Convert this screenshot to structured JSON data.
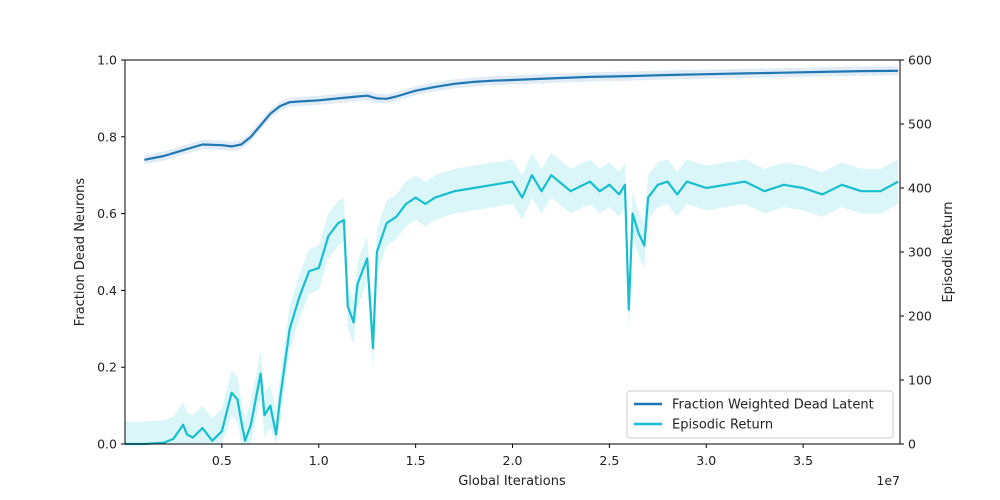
{
  "chart_data": {
    "type": "line",
    "title": "",
    "xlabel": "Global Iterations",
    "x_offset_label": "1e7",
    "ylabel_left": "Fraction Dead Neurons",
    "ylabel_right": "Episodic Return",
    "xlim": [
      0,
      4.0
    ],
    "ylim_left": [
      0.0,
      1.0
    ],
    "ylim_right": [
      0,
      600
    ],
    "x_ticks": [
      0.5,
      1.0,
      1.5,
      2.0,
      2.5,
      3.0,
      3.5
    ],
    "x_tick_labels": [
      "0.5",
      "1.0",
      "1.5",
      "2.0",
      "2.5",
      "3.0",
      "3.5"
    ],
    "y_left_ticks": [
      0.0,
      0.2,
      0.4,
      0.6,
      0.8,
      1.0
    ],
    "y_left_tick_labels": [
      "0.0",
      "0.2",
      "0.4",
      "0.6",
      "0.8",
      "1.0"
    ],
    "y_right_ticks": [
      0,
      100,
      200,
      300,
      400,
      500,
      600
    ],
    "y_right_tick_labels": [
      "0",
      "100",
      "200",
      "300",
      "400",
      "500",
      "600"
    ],
    "grid": false,
    "legend_position": "bottom-right",
    "colors": {
      "dead_latent": "#1f77b4",
      "episodic_return": "#17becf",
      "dead_latent_band": "#c9dcef",
      "episodic_return_band": "#bdeef4"
    },
    "series": [
      {
        "name": "Fraction Weighted Dead Latent",
        "axis": "left",
        "x": [
          0.1,
          0.2,
          0.3,
          0.4,
          0.5,
          0.55,
          0.6,
          0.65,
          0.7,
          0.75,
          0.8,
          0.85,
          0.9,
          1.0,
          1.1,
          1.2,
          1.25,
          1.3,
          1.35,
          1.4,
          1.5,
          1.6,
          1.7,
          1.8,
          1.9,
          2.0,
          2.2,
          2.4,
          2.6,
          2.8,
          3.0,
          3.2,
          3.4,
          3.6,
          3.8,
          3.99
        ],
        "y": [
          0.74,
          0.75,
          0.765,
          0.78,
          0.778,
          0.775,
          0.78,
          0.8,
          0.83,
          0.86,
          0.88,
          0.89,
          0.892,
          0.895,
          0.9,
          0.905,
          0.907,
          0.9,
          0.899,
          0.905,
          0.92,
          0.93,
          0.938,
          0.943,
          0.946,
          0.948,
          0.952,
          0.956,
          0.958,
          0.961,
          0.963,
          0.965,
          0.967,
          0.969,
          0.971,
          0.972
        ],
        "band_halfwidth": 0.012
      },
      {
        "name": "Episodic Return",
        "axis": "right",
        "x": [
          0.0,
          0.1,
          0.2,
          0.25,
          0.3,
          0.32,
          0.35,
          0.4,
          0.45,
          0.5,
          0.55,
          0.58,
          0.6,
          0.62,
          0.65,
          0.7,
          0.72,
          0.75,
          0.78,
          0.8,
          0.85,
          0.9,
          0.95,
          1.0,
          1.05,
          1.1,
          1.13,
          1.15,
          1.18,
          1.2,
          1.25,
          1.28,
          1.3,
          1.35,
          1.4,
          1.45,
          1.5,
          1.55,
          1.6,
          1.7,
          1.8,
          1.9,
          2.0,
          2.05,
          2.1,
          2.15,
          2.2,
          2.3,
          2.4,
          2.45,
          2.5,
          2.55,
          2.58,
          2.6,
          2.62,
          2.65,
          2.68,
          2.7,
          2.75,
          2.8,
          2.85,
          2.9,
          3.0,
          3.1,
          3.2,
          3.3,
          3.4,
          3.5,
          3.6,
          3.7,
          3.8,
          3.9,
          3.99
        ],
        "y": [
          0,
          0,
          2,
          8,
          30,
          15,
          10,
          25,
          5,
          20,
          80,
          70,
          35,
          5,
          30,
          110,
          45,
          60,
          15,
          70,
          180,
          230,
          270,
          275,
          325,
          345,
          350,
          215,
          190,
          250,
          290,
          150,
          300,
          345,
          355,
          375,
          385,
          375,
          385,
          395,
          400,
          405,
          410,
          385,
          420,
          395,
          420,
          395,
          410,
          395,
          405,
          390,
          405,
          210,
          360,
          330,
          310,
          385,
          405,
          410,
          390,
          410,
          400,
          405,
          410,
          395,
          405,
          400,
          390,
          405,
          395,
          395,
          410
        ],
        "band_halfwidth": 35
      }
    ]
  }
}
